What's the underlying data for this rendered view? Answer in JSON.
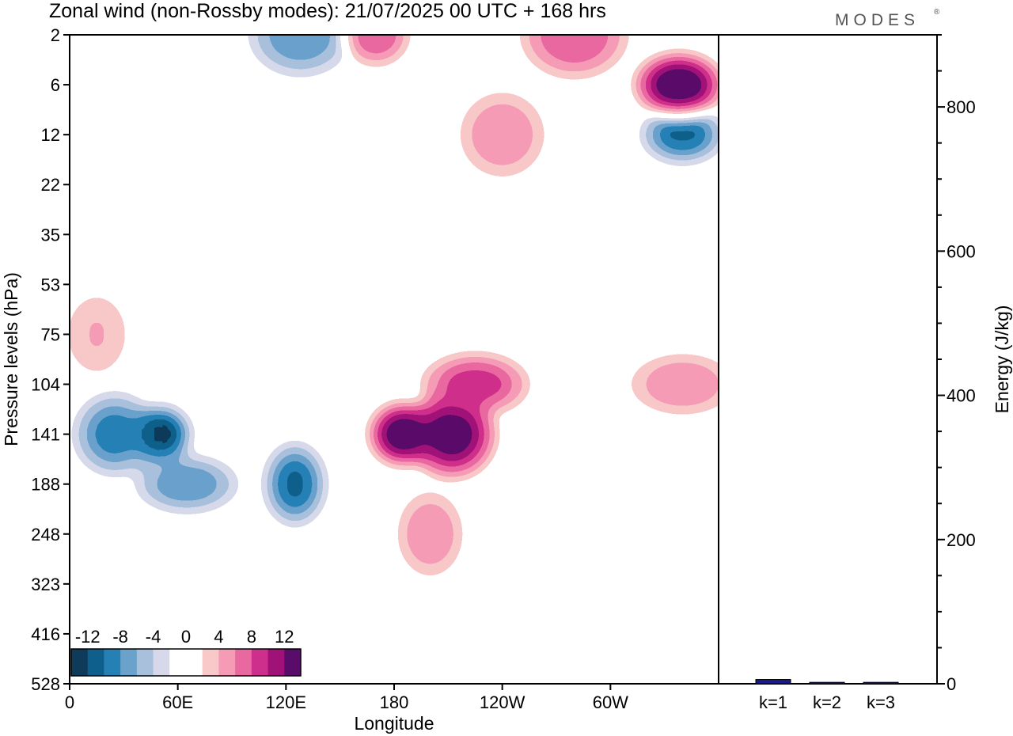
{
  "header": {
    "title": "Zonal wind (non-Rossby modes):  21/07/2025  00 UTC  + 168 hrs",
    "brand": "MODES",
    "brand_mark": "®"
  },
  "chart_data": [
    {
      "type": "heatmap",
      "title": "Zonal wind (non-Rossby modes):  21/07/2025  00 UTC  + 168 hrs",
      "xlabel": "Longitude",
      "ylabel": "Pressure levels (hPa)",
      "x_ticks": [
        "0",
        "60E",
        "120E",
        "180",
        "120W",
        "60W"
      ],
      "x_tick_degrees": [
        0,
        60,
        120,
        180,
        240,
        300
      ],
      "xlim_degrees": [
        0,
        360
      ],
      "y_ticks": [
        "2",
        "6",
        "12",
        "22",
        "35",
        "53",
        "75",
        "104",
        "141",
        "188",
        "248",
        "323",
        "416",
        "528"
      ],
      "y_scale": "categorical levels, top to bottom",
      "colorbar": {
        "tick_labels": [
          "-12",
          "-8",
          "-4",
          "0",
          "4",
          "8",
          "12"
        ],
        "tick_values": [
          -12,
          -8,
          -4,
          0,
          4,
          8,
          12
        ],
        "range": [
          -14,
          14
        ],
        "step": 2,
        "colors": [
          "#0d3b59",
          "#0f5f8c",
          "#2580b5",
          "#6aa2cc",
          "#a9c0dd",
          "#d7d9ea",
          "#ffffff",
          "#ffffff",
          "#f9c8c8",
          "#f59bb6",
          "#e8689f",
          "#cf2f8c",
          "#a11278",
          "#5a0c6a"
        ],
        "location": "bottom-left"
      },
      "features": [
        {
          "lon": 50,
          "level": "141",
          "value": -14
        },
        {
          "lon": 25,
          "level": "141",
          "value": -9
        },
        {
          "lon": 65,
          "level": "188",
          "value": -8
        },
        {
          "lon": 125,
          "level": "188",
          "value": -10
        },
        {
          "lon": 340,
          "level": "12",
          "value": -10
        },
        {
          "lon": 128,
          "level": "2",
          "value": -8
        },
        {
          "lon": 185,
          "level": "141",
          "value": 14
        },
        {
          "lon": 212,
          "level": "141",
          "value": 13
        },
        {
          "lon": 225,
          "level": "104",
          "value": 9
        },
        {
          "lon": 200,
          "level": "248",
          "value": 6
        },
        {
          "lon": 338,
          "level": "6",
          "value": 14
        },
        {
          "lon": 280,
          "level": "2",
          "value": 8
        },
        {
          "lon": 170,
          "level": "2",
          "value": 8
        },
        {
          "lon": 240,
          "level": "12",
          "value": 6
        },
        {
          "lon": 340,
          "level": "104",
          "value": 6
        },
        {
          "lon": 15,
          "level": "75",
          "value": 4
        }
      ],
      "grid": false
    },
    {
      "type": "bar",
      "categories": [
        "k=1",
        "k=2",
        "k=3"
      ],
      "values": [
        6,
        2,
        2
      ],
      "ylabel": "Energy (J/kg)",
      "y_ticks": [
        "0",
        "200",
        "400",
        "600",
        "800"
      ],
      "ylim": [
        0,
        900
      ],
      "bar_color": "#1a1a8c",
      "axis_side": "right"
    }
  ]
}
